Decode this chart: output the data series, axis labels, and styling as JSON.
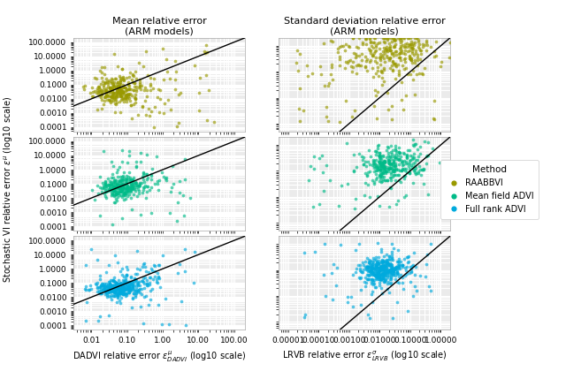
{
  "title_left": "Mean relative error\n(ARM models)",
  "title_right": "Standard deviation relative error\n(ARM models)",
  "xlabel_left": "DADVI relative error $\\varepsilon^{\\mu}_{DADVI}$ (log10 scale)",
  "xlabel_right": "LRVB relative error $\\varepsilon^{\\sigma}_{LRVB}$ (log10 scale)",
  "ylabel": "Stochastic VI relative error $\\varepsilon^{\\mu}_{}$ (log10 scale)",
  "c_raab": "#999900",
  "c_mf": "#00BB88",
  "c_fr": "#00AADD",
  "bg_color": "#EBEBEB",
  "grid_color": "#FFFFFF",
  "left_xlim": [
    -2.5,
    2.3
  ],
  "left_ylim": [
    -4.3,
    2.3
  ],
  "right_xlim": [
    -5.3,
    0.3
  ],
  "right_ylim": [
    -3.3,
    0.3
  ],
  "seed": 42,
  "point_size": 7,
  "point_alpha": 0.65
}
